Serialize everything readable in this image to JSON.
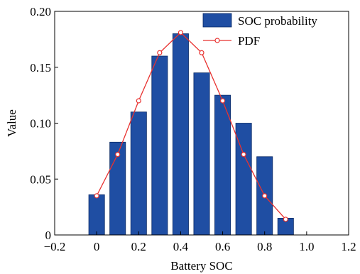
{
  "chart_data": {
    "type": "bar",
    "xlabel": "Battery  SOC",
    "ylabel": "Value",
    "xlim": [
      -0.2,
      1.2
    ],
    "ylim": [
      0,
      0.2
    ],
    "xticks": [
      -0.2,
      0,
      0.2,
      0.4,
      0.6,
      0.8,
      1.0,
      1.2
    ],
    "xtick_labels": [
      "−0.2",
      "0",
      "0.2",
      "0.4",
      "0.6",
      "0.8",
      "1.0",
      "1.2"
    ],
    "yticks": [
      0,
      0.05,
      0.1,
      0.15,
      0.2
    ],
    "ytick_labels": [
      "0",
      "0.05",
      "0.10",
      "0.15",
      "0.20"
    ],
    "grid": false,
    "legend_position": "top-right",
    "series": [
      {
        "name": "SOC  probability",
        "kind": "bar",
        "color": "#1f4ea3",
        "x": [
          0,
          0.1,
          0.2,
          0.3,
          0.4,
          0.5,
          0.6,
          0.7,
          0.8,
          0.9
        ],
        "values": [
          0.036,
          0.083,
          0.11,
          0.16,
          0.18,
          0.145,
          0.125,
          0.1,
          0.07,
          0.015
        ]
      },
      {
        "name": "PDF",
        "kind": "line",
        "color": "#e8312f",
        "marker": "open-circle",
        "x": [
          0,
          0.1,
          0.2,
          0.3,
          0.4,
          0.5,
          0.6,
          0.7,
          0.8,
          0.9
        ],
        "values": [
          0.035,
          0.072,
          0.12,
          0.163,
          0.181,
          0.163,
          0.12,
          0.072,
          0.035,
          0.014
        ]
      }
    ]
  }
}
